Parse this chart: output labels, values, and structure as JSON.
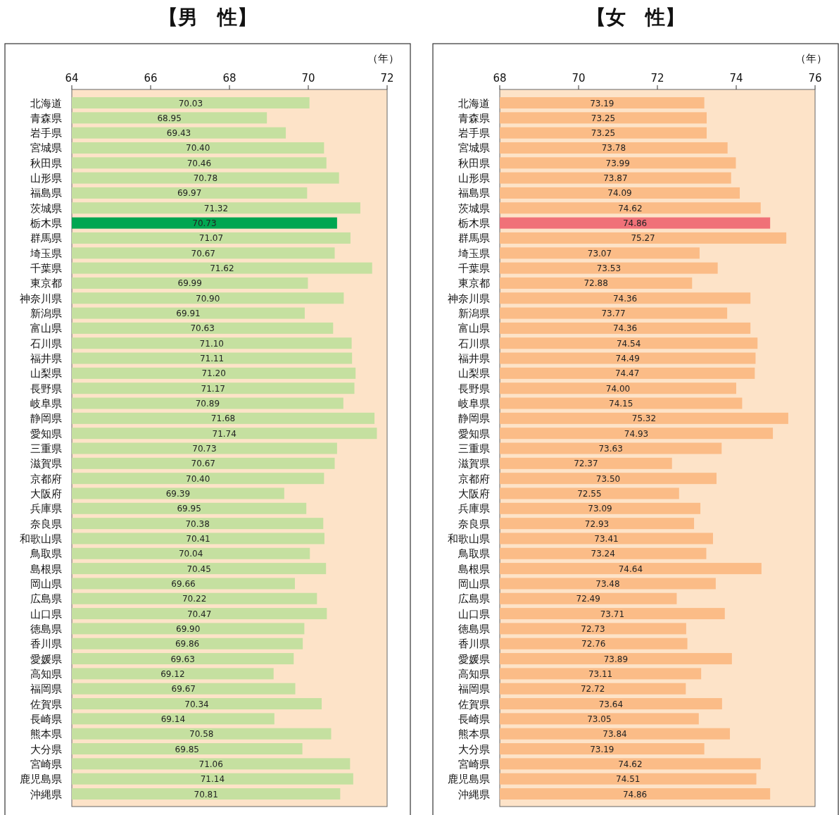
{
  "chart_data": [
    {
      "type": "bar",
      "orientation": "horizontal",
      "title": "【男　性】",
      "xlabel": "（年）",
      "xlim": [
        64,
        72
      ],
      "xticks": [
        64,
        66,
        68,
        70,
        72
      ],
      "value_labels": [
        "70.03",
        "68.95",
        "69.43",
        "70.40",
        "70.46",
        "70.78",
        "69.97",
        "71.32",
        "70.73",
        "71.07",
        "70.67",
        "71.62",
        "69.99",
        "70.90",
        "69.91",
        "70.63",
        "71.10",
        "71.11",
        "71.20",
        "71.17",
        "70.89",
        "71.68",
        "71.74",
        "70.73",
        "70.67",
        "70.40",
        "69.39",
        "69.95",
        "70.38",
        "70.41",
        "70.04",
        "70.45",
        "69.66",
        "70.22",
        "70.47",
        "69.90",
        "69.86",
        "69.63",
        "69.12",
        "69.67",
        "70.34",
        "69.14",
        "70.58",
        "69.85",
        "71.06",
        "71.14",
        "70.81"
      ],
      "categories": [
        "北海道",
        "青森県",
        "岩手県",
        "宮城県",
        "秋田県",
        "山形県",
        "福島県",
        "茨城県",
        "栃木県",
        "群馬県",
        "埼玉県",
        "千葉県",
        "東京都",
        "神奈川県",
        "新潟県",
        "富山県",
        "石川県",
        "福井県",
        "山梨県",
        "長野県",
        "岐阜県",
        "静岡県",
        "愛知県",
        "三重県",
        "滋賀県",
        "京都府",
        "大阪府",
        "兵庫県",
        "奈良県",
        "和歌山県",
        "鳥取県",
        "島根県",
        "岡山県",
        "広島県",
        "山口県",
        "徳島県",
        "香川県",
        "愛媛県",
        "高知県",
        "福岡県",
        "佐賀県",
        "長崎県",
        "熊本県",
        "大分県",
        "宮崎県",
        "鹿児島県",
        "沖縄県"
      ],
      "values": [
        70.03,
        68.95,
        69.43,
        70.4,
        70.46,
        70.78,
        69.97,
        71.32,
        70.73,
        71.07,
        70.67,
        71.62,
        69.99,
        70.9,
        69.91,
        70.63,
        71.1,
        71.11,
        71.2,
        71.17,
        70.89,
        71.68,
        71.74,
        70.73,
        70.67,
        70.4,
        69.39,
        69.95,
        70.38,
        70.41,
        70.04,
        70.45,
        69.66,
        70.22,
        70.47,
        69.9,
        69.86,
        69.63,
        69.12,
        69.67,
        70.34,
        69.14,
        70.58,
        69.85,
        71.06,
        71.14,
        70.81
      ],
      "colors": [
        "#c5e0a0",
        "#c5e0a0",
        "#c5e0a0",
        "#c5e0a0",
        "#c5e0a0",
        "#c5e0a0",
        "#c5e0a0",
        "#c5e0a0",
        "#00a651",
        "#c5e0a0",
        "#c5e0a0",
        "#c5e0a0",
        "#c5e0a0",
        "#c5e0a0",
        "#c5e0a0",
        "#c5e0a0",
        "#c5e0a0",
        "#c5e0a0",
        "#c5e0a0",
        "#c5e0a0",
        "#c5e0a0",
        "#c5e0a0",
        "#c5e0a0",
        "#c5e0a0",
        "#c5e0a0",
        "#c5e0a0",
        "#c5e0a0",
        "#c5e0a0",
        "#c5e0a0",
        "#c5e0a0",
        "#c5e0a0",
        "#c5e0a0",
        "#c5e0a0",
        "#c5e0a0",
        "#c5e0a0",
        "#c5e0a0",
        "#c5e0a0",
        "#c5e0a0",
        "#c5e0a0",
        "#c5e0a0",
        "#c5e0a0",
        "#c5e0a0",
        "#c5e0a0",
        "#c5e0a0",
        "#c5e0a0",
        "#c5e0a0",
        "#c5e0a0"
      ]
    },
    {
      "type": "bar",
      "orientation": "horizontal",
      "title": "【女　性】",
      "xlabel": "（年）",
      "xlim": [
        68,
        76
      ],
      "xticks": [
        68,
        70,
        72,
        74,
        76
      ],
      "value_labels": [
        "73.19",
        "73.25",
        "73.25",
        "73.78",
        "73.99",
        "73.87",
        "74.09",
        "74.62",
        "74.86",
        "75.27",
        "73.07",
        "73.53",
        "72.88",
        "74.36",
        "73.77",
        "74.36",
        "74.54",
        "74.49",
        "74.47",
        "74.00",
        "74.15",
        "75.32",
        "74.93",
        "73.63",
        "72.37",
        "73.50",
        "72.55",
        "73.09",
        "72.93",
        "73.41",
        "73.24",
        "74.64",
        "73.48",
        "72.49",
        "73.71",
        "72.73",
        "72.76",
        "73.89",
        "73.11",
        "72.72",
        "73.64",
        "73.05",
        "73.84",
        "73.19",
        "74.62",
        "74.51",
        "74.86"
      ],
      "categories": [
        "北海道",
        "青森県",
        "岩手県",
        "宮城県",
        "秋田県",
        "山形県",
        "福島県",
        "茨城県",
        "栃木県",
        "群馬県",
        "埼玉県",
        "千葉県",
        "東京都",
        "神奈川県",
        "新潟県",
        "富山県",
        "石川県",
        "福井県",
        "山梨県",
        "長野県",
        "岐阜県",
        "静岡県",
        "愛知県",
        "三重県",
        "滋賀県",
        "京都府",
        "大阪府",
        "兵庫県",
        "奈良県",
        "和歌山県",
        "鳥取県",
        "島根県",
        "岡山県",
        "広島県",
        "山口県",
        "徳島県",
        "香川県",
        "愛媛県",
        "高知県",
        "福岡県",
        "佐賀県",
        "長崎県",
        "熊本県",
        "大分県",
        "宮崎県",
        "鹿児島県",
        "沖縄県"
      ],
      "values": [
        73.19,
        73.25,
        73.25,
        73.78,
        73.99,
        73.87,
        74.09,
        74.62,
        74.86,
        75.27,
        73.07,
        73.53,
        72.88,
        74.36,
        73.77,
        74.36,
        74.54,
        74.49,
        74.47,
        74.0,
        74.15,
        75.32,
        74.93,
        73.63,
        72.37,
        73.5,
        72.55,
        73.09,
        72.93,
        73.41,
        73.24,
        74.64,
        73.48,
        72.49,
        73.71,
        72.73,
        72.76,
        73.89,
        73.11,
        72.72,
        73.64,
        73.05,
        73.84,
        73.19,
        74.62,
        74.51,
        74.86
      ],
      "colors": [
        "#fbbc87",
        "#fbbc87",
        "#fbbc87",
        "#fbbc87",
        "#fbbc87",
        "#fbbc87",
        "#fbbc87",
        "#fbbc87",
        "#f07178",
        "#fbbc87",
        "#fbbc87",
        "#fbbc87",
        "#fbbc87",
        "#fbbc87",
        "#fbbc87",
        "#fbbc87",
        "#fbbc87",
        "#fbbc87",
        "#fbbc87",
        "#fbbc87",
        "#fbbc87",
        "#fbbc87",
        "#fbbc87",
        "#fbbc87",
        "#fbbc87",
        "#fbbc87",
        "#fbbc87",
        "#fbbc87",
        "#fbbc87",
        "#fbbc87",
        "#fbbc87",
        "#fbbc87",
        "#fbbc87",
        "#fbbc87",
        "#fbbc87",
        "#fbbc87",
        "#fbbc87",
        "#fbbc87",
        "#fbbc87",
        "#fbbc87",
        "#fbbc87",
        "#fbbc87",
        "#fbbc87",
        "#fbbc87",
        "#fbbc87",
        "#fbbc87",
        "#fbbc87"
      ]
    }
  ]
}
